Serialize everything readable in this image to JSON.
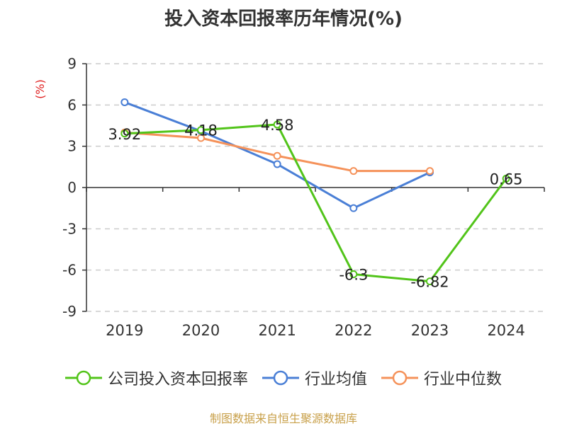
{
  "chart_data": {
    "type": "line",
    "title": "投入资本回报率历年情况(%)",
    "ylabel": "(%)",
    "xlabel": "",
    "categories": [
      "2019",
      "2020",
      "2021",
      "2022",
      "2023",
      "2024"
    ],
    "ylim": [
      -9,
      9
    ],
    "yticks": [
      9,
      6,
      3,
      0,
      -3,
      -6,
      -9
    ],
    "grid": true,
    "series": [
      {
        "name": "公司投入资本回报率",
        "color": "#52c41a",
        "values": [
          3.92,
          4.18,
          4.58,
          -6.3,
          -6.82,
          0.65
        ],
        "labels": [
          "3.92",
          "4.18",
          "4.58",
          "-6.3",
          "-6.82",
          "0.65"
        ]
      },
      {
        "name": "行业均值",
        "color": "#4a7fd6",
        "values": [
          6.2,
          4.1,
          1.7,
          -1.5,
          1.1,
          null
        ]
      },
      {
        "name": "行业中位数",
        "color": "#f5925a",
        "values": [
          4.0,
          3.6,
          2.3,
          1.2,
          1.2,
          null
        ]
      }
    ],
    "legend_position": "bottom",
    "source": "制图数据来自恒生聚源数据库"
  }
}
